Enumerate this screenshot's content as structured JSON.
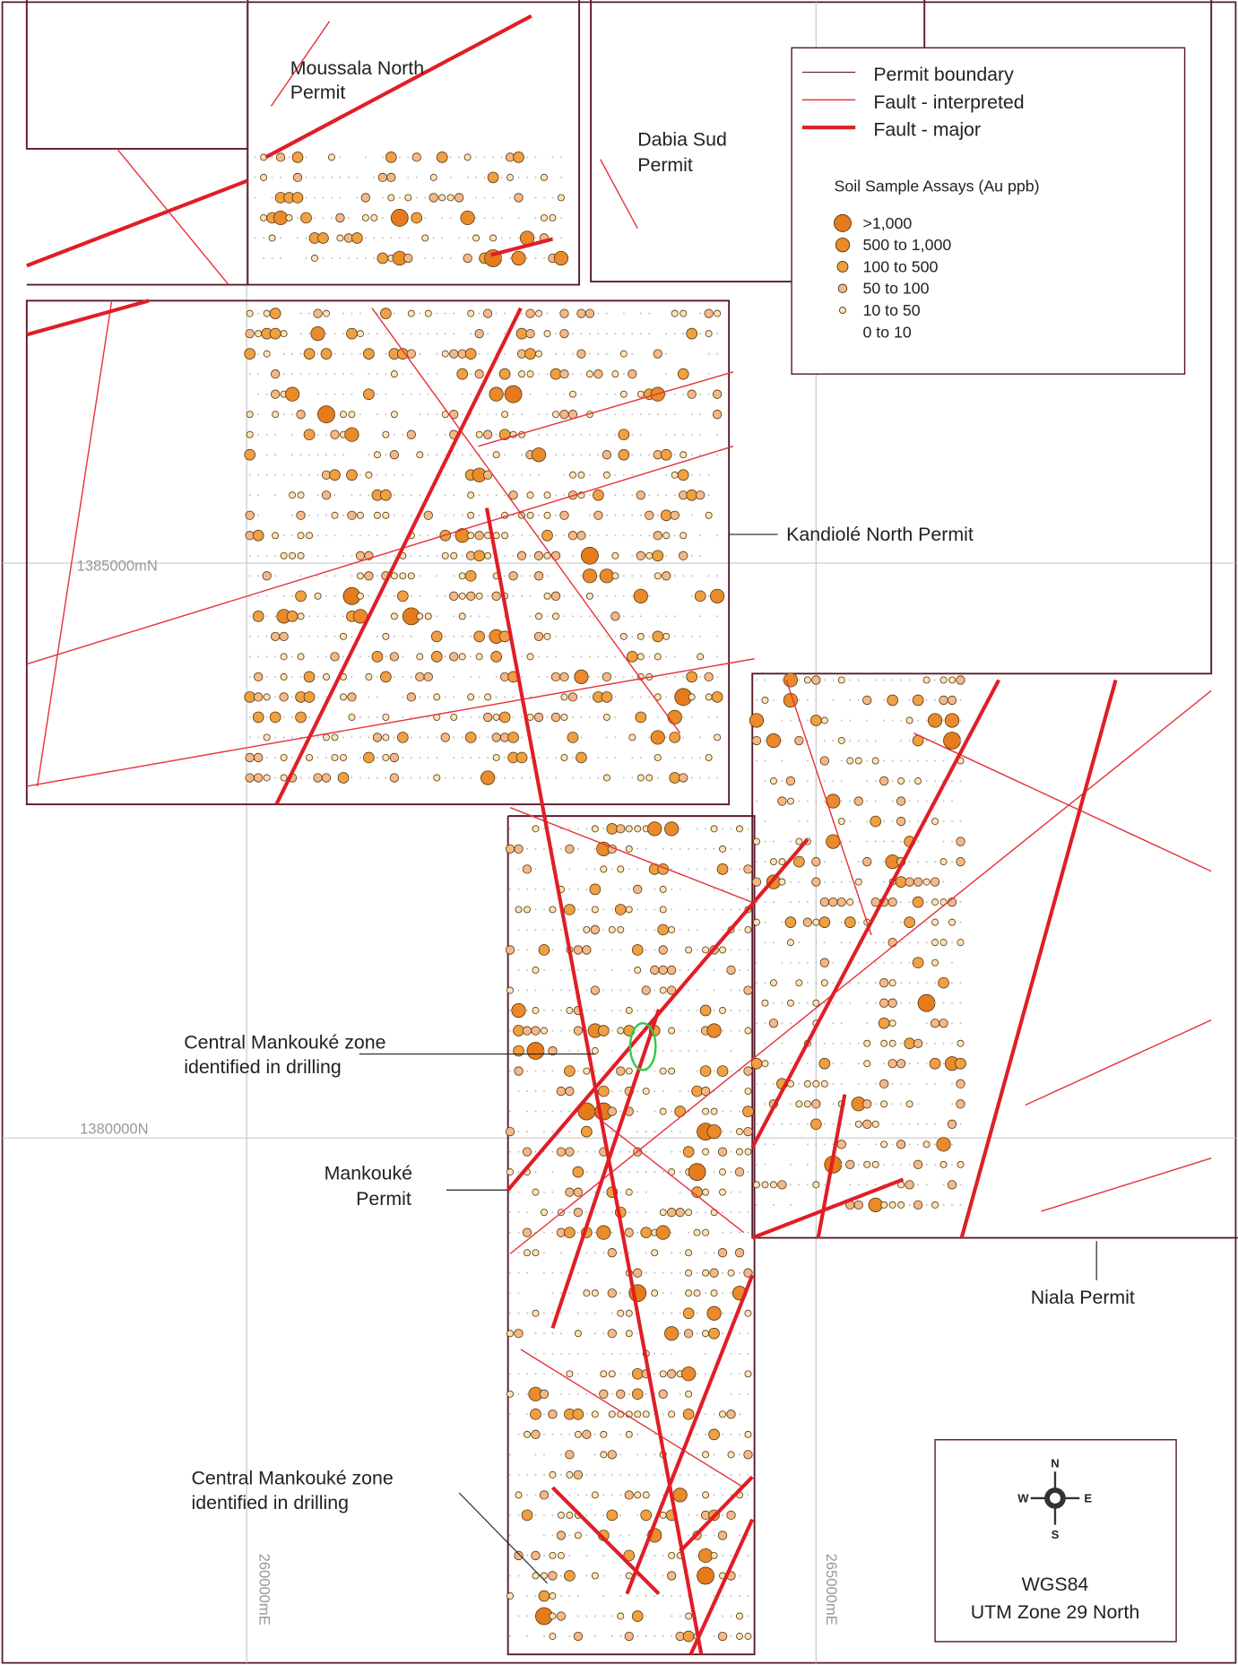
{
  "map": {
    "permits": {
      "moussala": [
        "Moussala North",
        "Permit"
      ],
      "dabia": [
        "Dabia Sud",
        "Permit"
      ],
      "kandiole": "Kandiolé North Permit",
      "mankouke": [
        "Mankouké",
        "Permit"
      ],
      "niala": "Niala Permit"
    },
    "annotations": [
      [
        "Central Mankouké zone",
        "identified in drilling"
      ],
      [
        "Central Mankouké zone",
        "identified in drilling"
      ]
    ],
    "grid_labels": {
      "n1": "1385000mN",
      "n2": "1380000N",
      "e1": "260000mE",
      "e2": "265000mE"
    },
    "legend": {
      "lines": [
        "Permit boundary",
        "Fault - interpreted",
        "Fault - major"
      ],
      "assay_title": "Soil Sample Assays (Au ppb)",
      "assay_classes": [
        ">1,000",
        "500 to 1,000",
        "100 to 500",
        "50 to 100",
        "10 to 50",
        "0 to 10"
      ]
    },
    "compass": {
      "n": "N",
      "s": "S",
      "e": "E",
      "w": "W"
    },
    "projection": [
      "WGS84",
      "UTM Zone 29 North"
    ]
  }
}
